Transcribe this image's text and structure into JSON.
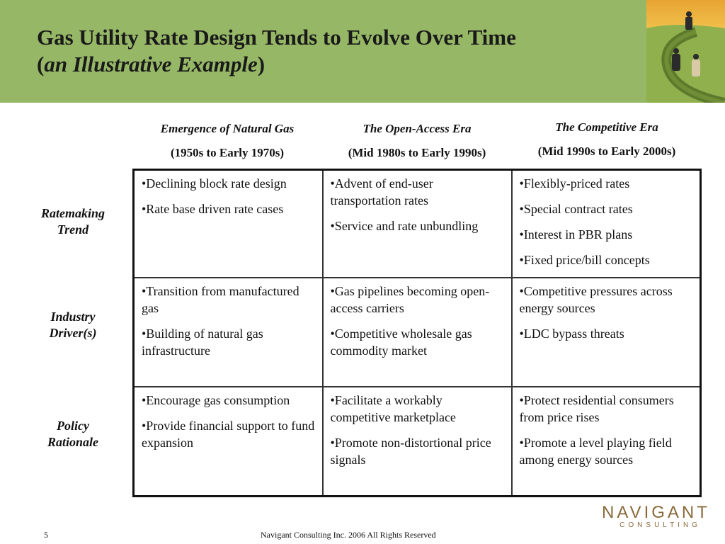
{
  "slide": {
    "title_line1": "Gas Utility Rate Design Tends to Evolve Over Time",
    "title_line2_open": "(",
    "title_line2_italic": "an Illustrative Example",
    "title_line2_close": ")"
  },
  "columns": [
    {
      "era": "Emergence of Natural Gas",
      "years": "(1950s to Early 1970s)"
    },
    {
      "era": "The Open-Access Era",
      "years": "(Mid 1980s to Early 1990s)"
    },
    {
      "era": "The Competitive Era",
      "years": "(Mid 1990s to Early 2000s)"
    }
  ],
  "rows": [
    {
      "label_line1": "Ratemaking",
      "label_line2": "Trend",
      "cells": [
        [
          "•Declining block rate design",
          "•Rate base driven rate cases"
        ],
        [
          "•Advent of end-user transportation rates",
          "•Service and rate unbundling"
        ],
        [
          "•Flexibly-priced rates",
          "•Special contract rates",
          "•Interest in PBR plans",
          "•Fixed price/bill concepts"
        ]
      ]
    },
    {
      "label_line1": "Industry",
      "label_line2": "Driver(s)",
      "cells": [
        [
          "•Transition from manufactured gas",
          "•Building of natural gas infrastructure"
        ],
        [
          "•Gas pipelines becoming open-access carriers",
          "•Competitive wholesale gas commodity market"
        ],
        [
          "•Competitive pressures across energy sources",
          "•LDC bypass threats"
        ]
      ]
    },
    {
      "label_line1": "Policy",
      "label_line2": "Rationale",
      "cells": [
        [
          "•Encourage gas consumption",
          "•Provide financial support to fund expansion"
        ],
        [
          "•Facilitate a workably competitive marketplace",
          "•Promote non-distortional price signals"
        ],
        [
          "•Protect residential consumers from price rises",
          "•Promote a level playing field among energy sources"
        ]
      ]
    }
  ],
  "footer": {
    "page_number": "5",
    "copyright": "Navigant Consulting Inc. 2006 All Rights Reserved"
  },
  "logo": {
    "name": "NAVIGANT",
    "sub": "CONSULTING"
  },
  "colors": {
    "header_green": "#96b866",
    "logo_brown": "#8a6a3a"
  }
}
